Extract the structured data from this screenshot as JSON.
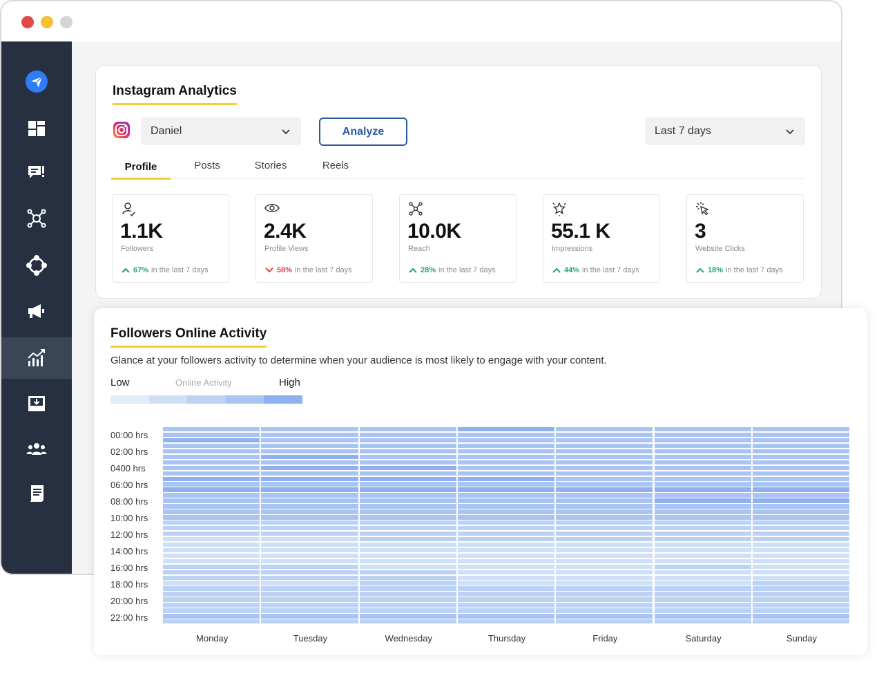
{
  "window": {
    "controls": [
      "close",
      "minimize",
      "maximize"
    ]
  },
  "sidebar": {
    "items": [
      {
        "icon": "send-icon",
        "active": false
      },
      {
        "icon": "dashboard-icon",
        "active": false
      },
      {
        "icon": "comments-icon",
        "active": false
      },
      {
        "icon": "network-icon",
        "active": false
      },
      {
        "icon": "connect-icon",
        "active": false
      },
      {
        "icon": "megaphone-icon",
        "active": false
      },
      {
        "icon": "analytics-icon",
        "active": true
      },
      {
        "icon": "inbox-download-icon",
        "active": false
      },
      {
        "icon": "team-icon",
        "active": false
      },
      {
        "icon": "report-icon",
        "active": false
      }
    ]
  },
  "analytics": {
    "title": "Instagram Analytics",
    "account_select": {
      "value": "Daniel"
    },
    "analyze_label": "Analyze",
    "range_select": {
      "value": "Last 7 days"
    },
    "tabs": [
      {
        "label": "Profile",
        "active": true
      },
      {
        "label": "Posts",
        "active": false
      },
      {
        "label": "Stories",
        "active": false
      },
      {
        "label": "Reels",
        "active": false
      }
    ],
    "stats": [
      {
        "icon": "user-icon",
        "value": "1.1K",
        "label": "Followers",
        "pct": "67%",
        "direction": "up",
        "suffix": "in the last 7 days"
      },
      {
        "icon": "eye-icon",
        "value": "2.4K",
        "label": "Profile Views",
        "pct": "58%",
        "direction": "down",
        "suffix": "in the last 7 days"
      },
      {
        "icon": "reach-icon",
        "value": "10.0K",
        "label": "Reach",
        "pct": "28%",
        "direction": "up",
        "suffix": "in the last 7 days"
      },
      {
        "icon": "star-icon",
        "value": "55.1 K",
        "label": "Impressions",
        "pct": "44%",
        "direction": "up",
        "suffix": "in the last 7 days"
      },
      {
        "icon": "cursor-click-icon",
        "value": "3",
        "label": "Website Clicks",
        "pct": "18%",
        "direction": "up",
        "suffix": "in the last 7 days"
      }
    ]
  },
  "activity": {
    "title": "Followers Online Activity",
    "description": "Glance at your followers activity to determine when your audience is most likely to engage with your content.",
    "legend": {
      "low": "Low",
      "middle": "Online Activity",
      "high": "High",
      "scale_colors": [
        "#e3ecfb",
        "#cfdff8",
        "#bcd2f5",
        "#a9c4f3",
        "#8fb1ef"
      ]
    },
    "hours": [
      "00:00 hrs",
      "02:00 hrs",
      "0400 hrs",
      "06:00 hrs",
      "08:00 hrs",
      "10:00 hrs",
      "12:00 hrs",
      "14:00 hrs",
      "16:00 hrs",
      "18:00 hrs",
      "20:00 hrs",
      "22:00 hrs"
    ],
    "days": [
      "Monday",
      "Tuesday",
      "Wednesday",
      "Thursday",
      "Friday",
      "Saturday",
      "Sunday"
    ],
    "levels": [
      [
        3,
        3,
        3,
        4,
        3,
        3,
        3
      ],
      [
        3,
        3,
        3,
        3,
        3,
        3,
        3
      ],
      [
        4,
        3,
        3,
        3,
        3,
        3,
        3
      ],
      [
        3,
        3,
        3,
        3,
        3,
        3,
        3
      ],
      [
        3,
        3,
        3,
        3,
        3,
        3,
        3
      ],
      [
        3,
        4,
        3,
        3,
        3,
        3,
        3
      ],
      [
        3,
        3,
        3,
        3,
        3,
        3,
        3
      ],
      [
        3,
        4,
        4,
        3,
        3,
        3,
        3
      ],
      [
        3,
        3,
        3,
        3,
        3,
        3,
        3
      ],
      [
        4,
        4,
        4,
        4,
        3,
        3,
        3
      ],
      [
        3,
        3,
        3,
        3,
        3,
        3,
        3
      ],
      [
        4,
        4,
        4,
        4,
        4,
        4,
        4
      ],
      [
        3,
        3,
        3,
        3,
        3,
        3,
        3
      ],
      [
        3,
        3,
        3,
        3,
        3,
        4,
        4
      ],
      [
        3,
        3,
        3,
        3,
        3,
        3,
        3
      ],
      [
        3,
        3,
        3,
        3,
        3,
        3,
        3
      ],
      [
        3,
        3,
        3,
        3,
        3,
        3,
        3
      ],
      [
        2,
        2,
        2,
        2,
        2,
        2,
        2
      ],
      [
        2,
        2,
        2,
        2,
        2,
        2,
        2
      ],
      [
        2,
        2,
        2,
        2,
        2,
        2,
        2
      ],
      [
        1,
        1,
        2,
        2,
        2,
        2,
        2
      ],
      [
        1,
        1,
        1,
        1,
        1,
        1,
        1
      ],
      [
        1,
        1,
        1,
        1,
        1,
        1,
        1
      ],
      [
        1,
        1,
        1,
        1,
        1,
        1,
        1
      ],
      [
        1,
        1,
        1,
        1,
        1,
        1,
        1
      ],
      [
        2,
        2,
        1,
        1,
        1,
        2,
        1
      ],
      [
        2,
        2,
        2,
        1,
        1,
        1,
        1
      ],
      [
        2,
        2,
        2,
        1,
        1,
        1,
        1
      ],
      [
        1,
        1,
        2,
        1,
        1,
        1,
        2
      ],
      [
        2,
        2,
        2,
        2,
        2,
        2,
        2
      ],
      [
        2,
        2,
        2,
        2,
        2,
        2,
        2
      ],
      [
        2,
        2,
        2,
        2,
        2,
        2,
        2
      ],
      [
        2,
        2,
        2,
        2,
        2,
        2,
        2
      ],
      [
        2,
        2,
        2,
        2,
        2,
        2,
        2
      ],
      [
        3,
        3,
        3,
        3,
        3,
        3,
        3
      ],
      [
        2,
        2,
        2,
        2,
        2,
        2,
        2
      ]
    ]
  }
}
